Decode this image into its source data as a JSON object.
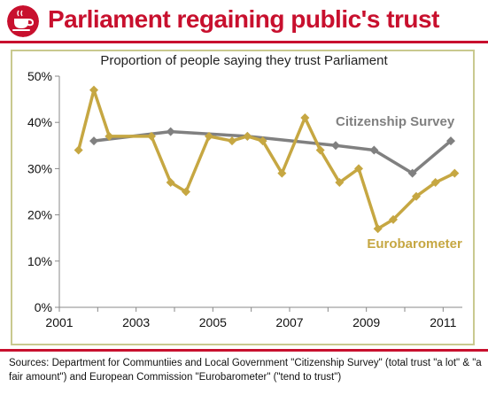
{
  "header": {
    "title": "Parliament regaining public's trust",
    "logo_icon": "teacup-logo-icon",
    "title_color": "#c8102e"
  },
  "chart_data": {
    "type": "line",
    "title": "Proportion of people saying they trust Parliament",
    "xlabel": "",
    "ylabel": "",
    "xlim": [
      2001,
      2011.5
    ],
    "ylim": [
      0,
      50
    ],
    "x_ticks": [
      "2001",
      "2003",
      "2005",
      "2007",
      "2009",
      "2011"
    ],
    "y_ticks": [
      "0%",
      "10%",
      "20%",
      "30%",
      "40%",
      "50%"
    ],
    "grid": false,
    "series": [
      {
        "name": "Citizenship Survey",
        "color": "#808080",
        "marker": "diamond",
        "points": [
          {
            "x": 2001.9,
            "y": 36
          },
          {
            "x": 2003.9,
            "y": 38
          },
          {
            "x": 2005.9,
            "y": 37
          },
          {
            "x": 2008.2,
            "y": 35
          },
          {
            "x": 2009.2,
            "y": 34
          },
          {
            "x": 2010.2,
            "y": 29
          },
          {
            "x": 2011.2,
            "y": 36
          }
        ]
      },
      {
        "name": "Eurobarometer",
        "color": "#c6a742",
        "marker": "diamond",
        "points": [
          {
            "x": 2001.5,
            "y": 34
          },
          {
            "x": 2001.9,
            "y": 47
          },
          {
            "x": 2002.3,
            "y": 37
          },
          {
            "x": 2003.4,
            "y": 37
          },
          {
            "x": 2003.9,
            "y": 27
          },
          {
            "x": 2004.3,
            "y": 25
          },
          {
            "x": 2004.9,
            "y": 37
          },
          {
            "x": 2005.5,
            "y": 36
          },
          {
            "x": 2005.9,
            "y": 37
          },
          {
            "x": 2006.3,
            "y": 36
          },
          {
            "x": 2006.8,
            "y": 29
          },
          {
            "x": 2007.4,
            "y": 41
          },
          {
            "x": 2007.8,
            "y": 34
          },
          {
            "x": 2008.3,
            "y": 27
          },
          {
            "x": 2008.8,
            "y": 30
          },
          {
            "x": 2009.3,
            "y": 17
          },
          {
            "x": 2009.7,
            "y": 19
          },
          {
            "x": 2010.3,
            "y": 24
          },
          {
            "x": 2010.8,
            "y": 27
          },
          {
            "x": 2011.3,
            "y": 29
          }
        ]
      }
    ],
    "annotations": [
      {
        "text": "Citizenship Survey",
        "series": 0
      },
      {
        "text": "Eurobarometer",
        "series": 1
      }
    ]
  },
  "footer": {
    "sources": "Sources: Department for Communtiies and Local Government \"Citizenship Survey\" (total trust \"a lot\" & \"a fair amount\") and European Commission \"Eurobarometer\" (\"tend to trust\")"
  },
  "colors": {
    "accent_red": "#c8102e",
    "chart_border": "#c9c98f",
    "axis": "#888888"
  }
}
